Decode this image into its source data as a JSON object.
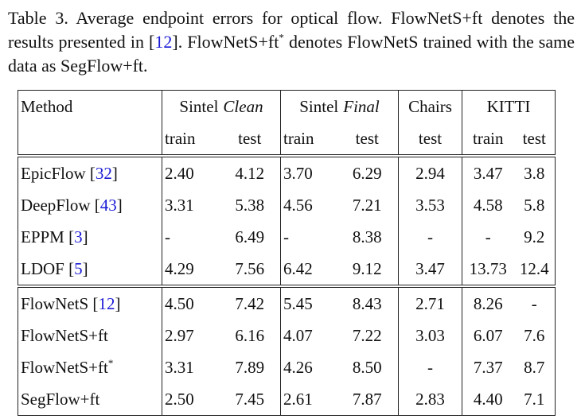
{
  "caption": [
    "Table 3. Average endpoint errors for optical flow. FlowNetS+ft denotes the results presented in [",
    "12",
    "]. FlowNetS+ft",
    "*",
    " denotes FlowNetS trained with the same data as SegFlow+ft."
  ],
  "table": {
    "header": {
      "method": "Method",
      "groups": [
        [
          "Sintel",
          "Clean"
        ],
        [
          "Sintel",
          "Final"
        ],
        [
          "Chairs"
        ],
        [
          "KITTI"
        ]
      ],
      "sub": [
        "train",
        "test",
        "train",
        "test",
        "test",
        "train",
        "test"
      ]
    },
    "blocks": [
      [
        {
          "method": [
            "EpicFlow [",
            "32",
            "]"
          ],
          "cells": [
            "2.40",
            "4.12",
            "3.70",
            "6.29",
            "2.94",
            "3.47",
            "3.8"
          ]
        },
        {
          "method": [
            "DeepFlow [",
            "43",
            "]"
          ],
          "cells": [
            "3.31",
            "5.38",
            "4.56",
            "7.21",
            "3.53",
            "4.58",
            "5.8"
          ]
        },
        {
          "method": [
            "EPPM [",
            "3",
            "]"
          ],
          "cells": [
            "-",
            "6.49",
            "-",
            "8.38",
            "-",
            "-",
            "9.2"
          ]
        },
        {
          "method": [
            "LDOF [",
            "5",
            "]"
          ],
          "cells": [
            "4.29",
            "7.56",
            "6.42",
            "9.12",
            "3.47",
            "13.73",
            "12.4"
          ]
        }
      ],
      [
        {
          "method": [
            "FlowNetS [",
            "12",
            "]"
          ],
          "cells": [
            "4.50",
            "7.42",
            "5.45",
            "8.43",
            "2.71",
            "8.26",
            "-"
          ]
        },
        {
          "method": [
            "FlowNetS+ft"
          ],
          "cells": [
            "2.97",
            "6.16",
            "4.07",
            "7.22",
            "3.03",
            "6.07",
            "7.6"
          ]
        },
        {
          "method": [
            "FlowNetS+ft",
            "*"
          ],
          "cells": [
            "3.31",
            "7.89",
            "4.26",
            "8.50",
            "-",
            "7.37",
            "8.7"
          ]
        },
        {
          "method": [
            "SegFlow+ft"
          ],
          "cells": [
            "2.50",
            "7.45",
            "2.61",
            "7.87",
            "2.83",
            "4.40",
            "7.1"
          ]
        }
      ]
    ]
  }
}
